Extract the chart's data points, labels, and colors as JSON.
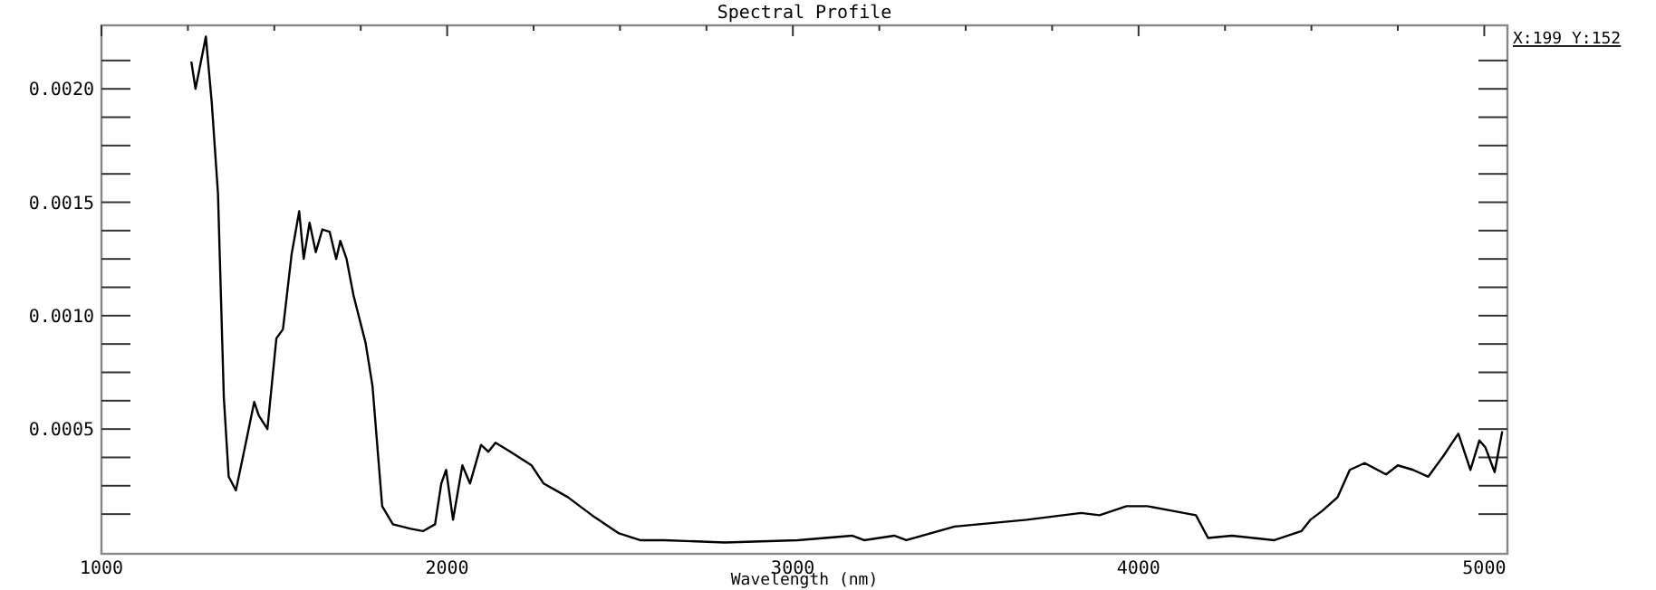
{
  "chart_data": {
    "type": "line",
    "title": "Spectral Profile",
    "xlabel": "Wavelength (nm)",
    "annotations": [
      "X:199 Y:152"
    ],
    "xlim": [
      1000,
      5067
    ],
    "ylim": [
      -5e-05,
      0.00228
    ],
    "xticks": [
      1000,
      {
        "value": 1250,
        "label": null
      },
      {
        "value": 1500,
        "label": null
      },
      {
        "value": 1750,
        "label": null
      },
      2000,
      {
        "value": 2250,
        "label": null
      },
      {
        "value": 2500,
        "label": null
      },
      {
        "value": 2750,
        "label": null
      },
      3000,
      {
        "value": 3250,
        "label": null
      },
      {
        "value": 3500,
        "label": null
      },
      {
        "value": 3750,
        "label": null
      },
      4000,
      {
        "value": 4250,
        "label": null
      },
      {
        "value": 4500,
        "label": null
      },
      {
        "value": 4750,
        "label": null
      },
      5000
    ],
    "yticks": [
      {
        "value": 0.000125,
        "label": null
      },
      {
        "value": 0.00025,
        "label": null
      },
      {
        "value": 0.000375,
        "label": null
      },
      {
        "value": 0.0005,
        "label": "0.0005"
      },
      {
        "value": 0.000625,
        "label": null
      },
      {
        "value": 0.00075,
        "label": null
      },
      {
        "value": 0.000875,
        "label": null
      },
      {
        "value": 0.001,
        "label": "0.0010"
      },
      {
        "value": 0.001125,
        "label": null
      },
      {
        "value": 0.00125,
        "label": null
      },
      {
        "value": 0.001375,
        "label": null
      },
      {
        "value": 0.0015,
        "label": "0.0015"
      },
      {
        "value": 0.001625,
        "label": null
      },
      {
        "value": 0.00175,
        "label": null
      },
      {
        "value": 0.001875,
        "label": null
      },
      {
        "value": 0.002,
        "label": "0.0020"
      },
      {
        "value": 0.002125,
        "label": null
      }
    ],
    "grid": false,
    "marker": "none",
    "line_style": "solid",
    "series": [
      {
        "color": "#000000",
        "x": [
          1260,
          1272,
          1302,
          1319,
          1337,
          1354,
          1368,
          1389,
          1415,
          1442,
          1455,
          1480,
          1506,
          1525,
          1550,
          1572,
          1585,
          1602,
          1620,
          1639,
          1660,
          1679,
          1691,
          1709,
          1729,
          1764,
          1784,
          1812,
          1843,
          1895,
          1930,
          1965,
          1983,
          1997,
          2017,
          2044,
          2066,
          2098,
          2119,
          2140,
          2183,
          2244,
          2279,
          2349,
          2419,
          2497,
          2558,
          2628,
          2803,
          3014,
          3171,
          3206,
          3293,
          3328,
          3468,
          3677,
          3834,
          3887,
          3965,
          4026,
          4096,
          4166,
          4201,
          4270,
          4393,
          4471,
          4497,
          4532,
          4576,
          4611,
          4654,
          4716,
          4750,
          4794,
          4838,
          4881,
          4925,
          4960,
          4986,
          5003,
          5030,
          5052
        ],
        "values": [
          0.00212,
          0.002,
          0.00223,
          0.00194,
          0.00154,
          0.00064,
          0.00029,
          0.00023,
          0.00042,
          0.00062,
          0.00056,
          0.0005,
          0.0009,
          0.00094,
          0.00127,
          0.00146,
          0.00125,
          0.00141,
          0.00128,
          0.00138,
          0.00137,
          0.00125,
          0.00133,
          0.00125,
          0.00109,
          0.00088,
          0.00069,
          0.00016,
          8e-05,
          6e-05,
          5e-05,
          8e-05,
          0.00026,
          0.00032,
          0.0001,
          0.00034,
          0.00026,
          0.00043,
          0.0004,
          0.00044,
          0.0004,
          0.00034,
          0.00026,
          0.0002,
          0.00012,
          4e-05,
          1e-05,
          1e-05,
          0.0,
          1e-05,
          3e-05,
          1e-05,
          3e-05,
          1e-05,
          7e-05,
          0.0001,
          0.00013,
          0.00012,
          0.00016,
          0.00016,
          0.00014,
          0.00012,
          2e-05,
          3e-05,
          1e-05,
          5e-05,
          0.0001,
          0.00014,
          0.0002,
          0.00032,
          0.00035,
          0.0003,
          0.00034,
          0.00032,
          0.00029,
          0.00038,
          0.00048,
          0.00032,
          0.00045,
          0.00042,
          0.00031,
          0.00049
        ]
      }
    ]
  }
}
